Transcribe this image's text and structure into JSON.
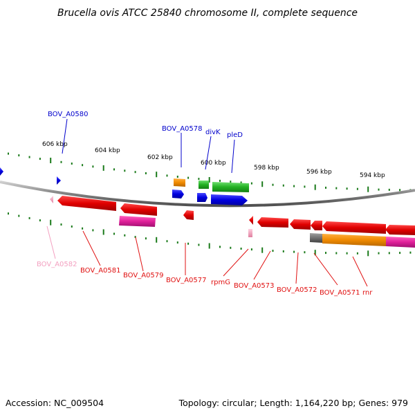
{
  "title": "Brucella ovis ATCC 25840 chromosome II, complete sequence",
  "footer": {
    "accession": "Accession: NC_009504",
    "summary": "Topology: circular; Length: 1,164,220 bp; Genes: 979"
  },
  "scale_labels": [
    "606 kbp",
    "604 kbp",
    "602 kbp",
    "600 kbp",
    "598 kbp",
    "596 kbp",
    "594 kbp"
  ],
  "colors": {
    "forward_gene": "#1010e0",
    "reverse_gene": "#e01010",
    "pseudo_gene": "#f3a0c0",
    "rna_gene": "#e01010",
    "cds_orange": "#f08a00",
    "cds_green": "#22b022",
    "cds_magenta": "#e0209a",
    "cds_gray": "#707070",
    "backbone": "#888888",
    "ticks": "#1a7a1a"
  },
  "gene_labels": {
    "forward": [
      "BOV_A0580",
      "BOV_A0578",
      "divK",
      "pleD"
    ],
    "reverse": [
      "BOV_A0582",
      "BOV_A0581",
      "BOV_A0579",
      "BOV_A0577",
      "rpmG",
      "BOV_A0573",
      "BOV_A0572",
      "BOV_A0571",
      "rnr"
    ]
  }
}
